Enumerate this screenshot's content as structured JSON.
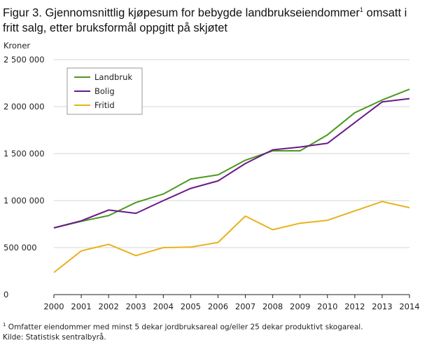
{
  "figure": {
    "title_main": "Figur 3. Gjennomsnittlig kjøpesum for bebygde landbrukseiendommer",
    "title_sup": "1",
    "title_rest": " omsatt i fritt salg, etter bruksformål oppgitt på skjøtet",
    "footnote_mark": "1",
    "footnote": " Omfatter eiendommer med minst 5 dekar jordbruksareal og/eller 25 dekar produktivt  skogareal.",
    "source": "Kilde: Statistisk sentralbyrå."
  },
  "chart_data": {
    "type": "line",
    "title": "Figur 3. Gjennomsnittlig kjøpesum for bebygde landbrukseiendommer¹ omsatt i fritt salg, etter bruksformål oppgitt på skjøtet",
    "ylabel": "Kroner",
    "xlabel": "",
    "categories": [
      "2000",
      "2001",
      "2002",
      "2003",
      "2004",
      "2005",
      "2006",
      "2007",
      "2008",
      "2009",
      "2010",
      "2012",
      "2013",
      "2014"
    ],
    "ylim": [
      0,
      2500000
    ],
    "yticks": [
      0,
      500000,
      1000000,
      1500000,
      2000000,
      2500000
    ],
    "ytick_labels": [
      "0",
      "500 000",
      "1 000 000",
      "1 500 000",
      "2 000 000",
      "2 500 000"
    ],
    "grid": true,
    "legend_position": "top-left",
    "series": [
      {
        "name": "Landbruk",
        "color": "#4a9a1e",
        "values": [
          710000,
          780000,
          840000,
          980000,
          1070000,
          1230000,
          1275000,
          1430000,
          1530000,
          1530000,
          1700000,
          1935000,
          2070000,
          2185000
        ]
      },
      {
        "name": "Bolig",
        "color": "#6a1a8a",
        "values": [
          710000,
          785000,
          900000,
          865000,
          1000000,
          1130000,
          1210000,
          1395000,
          1540000,
          1570000,
          1610000,
          1830000,
          2050000,
          2085000
        ]
      },
      {
        "name": "Fritid",
        "color": "#e8b21e",
        "values": [
          235000,
          465000,
          535000,
          415000,
          500000,
          505000,
          555000,
          835000,
          690000,
          760000,
          790000,
          890000,
          990000,
          925000
        ]
      }
    ]
  }
}
